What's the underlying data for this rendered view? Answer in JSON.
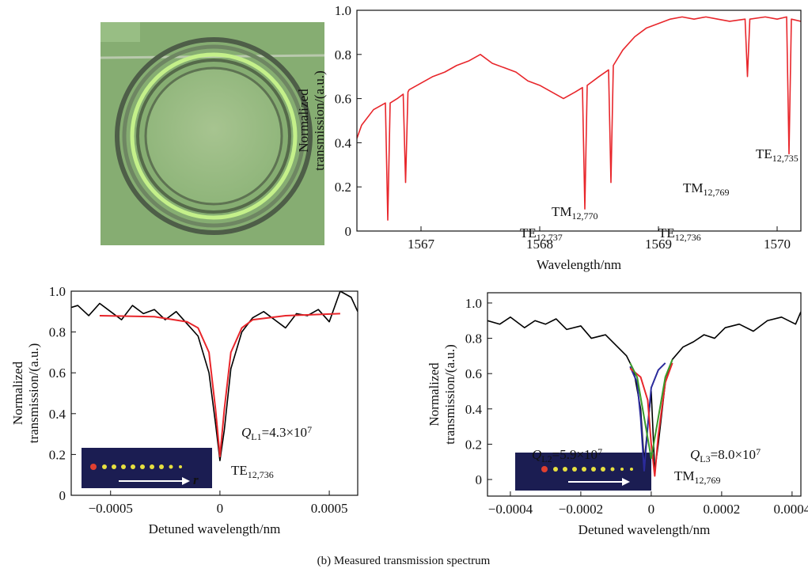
{
  "caption": "(b) Measured transmission spectrum",
  "chart_data": [
    {
      "type": "line",
      "xlabel": "Wavelength/nm",
      "ylabel": [
        "Normalized",
        "transmission/(a.u.)"
      ],
      "xlim": [
        1566.46,
        1570.2
      ],
      "ylim": [
        0,
        1
      ],
      "xticks": [
        1567,
        1568,
        1569,
        1570
      ],
      "yticks": [
        0,
        0.2,
        0.4,
        0.6,
        0.8,
        {
          "value": 1,
          "label": "1.0"
        }
      ],
      "series": [
        {
          "color": "#e8262b",
          "x": [
            1566.46,
            1566.5,
            1566.6,
            1566.7,
            1566.72,
            1566.74,
            1566.8,
            1566.85,
            1566.87,
            1566.89,
            1566.9,
            1567.0,
            1567.1,
            1567.2,
            1567.3,
            1567.4,
            1567.5,
            1567.6,
            1567.7,
            1567.8,
            1567.9,
            1568.0,
            1568.1,
            1568.2,
            1568.3,
            1568.36,
            1568.38,
            1568.4,
            1568.5,
            1568.58,
            1568.6,
            1568.62,
            1568.7,
            1568.8,
            1568.9,
            1569.0,
            1569.1,
            1569.2,
            1569.3,
            1569.4,
            1569.5,
            1569.6,
            1569.73,
            1569.75,
            1569.77,
            1569.9,
            1570.0,
            1570.08,
            1570.1,
            1570.12,
            1570.2
          ],
          "values": [
            0.42,
            0.48,
            0.55,
            0.58,
            0.05,
            0.58,
            0.6,
            0.62,
            0.22,
            0.63,
            0.64,
            0.67,
            0.7,
            0.72,
            0.75,
            0.77,
            0.8,
            0.76,
            0.74,
            0.72,
            0.68,
            0.66,
            0.63,
            0.6,
            0.63,
            0.65,
            0.1,
            0.66,
            0.7,
            0.73,
            0.22,
            0.75,
            0.82,
            0.88,
            0.92,
            0.94,
            0.96,
            0.97,
            0.96,
            0.97,
            0.96,
            0.95,
            0.96,
            0.7,
            0.96,
            0.97,
            0.96,
            0.97,
            0.35,
            0.96,
            0.95
          ]
        }
      ],
      "annotations": [
        {
          "parts": [
            {
              "text": "TM"
            },
            {
              "text": "12,770",
              "style": "sub"
            }
          ]
        },
        {
          "parts": [
            {
              "text": "TE"
            },
            {
              "text": "12,737",
              "style": "sub"
            }
          ]
        },
        {
          "parts": [
            {
              "text": "TM"
            },
            {
              "text": "12,769",
              "style": "sub"
            }
          ]
        },
        {
          "parts": [
            {
              "text": "TE"
            },
            {
              "text": "12,736",
              "style": "sub"
            }
          ]
        },
        {
          "parts": [
            {
              "text": "TE"
            },
            {
              "text": "12,735",
              "style": "sub"
            }
          ]
        }
      ]
    },
    {
      "type": "line",
      "xlabel": "Detuned wavelength/nm",
      "ylabel": [
        "Normalized",
        "transmission/(a.u.)"
      ],
      "xlim": [
        -0.00068,
        0.00063
      ],
      "ylim": [
        0,
        1
      ],
      "xticks": [
        {
          "value": -0.0005,
          "label": "−0.0005"
        },
        0,
        0.0005
      ],
      "yticks": [
        0,
        0.2,
        0.4,
        0.6,
        0.8,
        {
          "value": 1,
          "label": "1.0"
        }
      ],
      "series": [
        {
          "color": "#000000",
          "x": [
            -0.00068,
            -0.00065,
            -0.0006,
            -0.00055,
            -0.0005,
            -0.00045,
            -0.0004,
            -0.00035,
            -0.0003,
            -0.00025,
            -0.0002,
            -0.00015,
            -0.0001,
            -5e-05,
            -2e-05,
            0,
            2e-05,
            5e-05,
            0.0001,
            0.00015,
            0.0002,
            0.00025,
            0.0003,
            0.00035,
            0.0004,
            0.00045,
            0.0005,
            0.00055,
            0.0006,
            0.00063
          ],
          "values": [
            0.92,
            0.93,
            0.88,
            0.94,
            0.9,
            0.86,
            0.93,
            0.89,
            0.91,
            0.86,
            0.9,
            0.84,
            0.78,
            0.6,
            0.35,
            0.17,
            0.32,
            0.62,
            0.8,
            0.87,
            0.9,
            0.86,
            0.82,
            0.89,
            0.88,
            0.91,
            0.85,
            1,
            0.97,
            0.9
          ]
        },
        {
          "color": "#e8262b",
          "x": [
            -0.00055,
            -0.0003,
            -0.00015,
            -0.0001,
            -5e-05,
            -2e-05,
            0,
            2e-05,
            5e-05,
            0.0001,
            0.00015,
            0.0003,
            0.00055
          ],
          "values": [
            0.88,
            0.875,
            0.85,
            0.82,
            0.7,
            0.42,
            0.19,
            0.42,
            0.7,
            0.82,
            0.86,
            0.88,
            0.89
          ]
        }
      ],
      "inset_label": "r",
      "annotations": [
        {
          "color": "#e8262b",
          "parts": [
            {
              "text": "Q",
              "style": "italic"
            },
            {
              "text": "L1",
              "style": "sub"
            },
            {
              "text": "=4.3×10"
            },
            {
              "text": "7",
              "style": "sup"
            }
          ]
        },
        {
          "parts": [
            {
              "text": "TE"
            },
            {
              "text": "12,736",
              "style": "sub"
            }
          ]
        }
      ]
    },
    {
      "type": "line",
      "xlabel": "Detuned wavelength/nm",
      "ylabel": [
        "Normalized",
        "transmission/(a.u.)"
      ],
      "xlim": [
        -0.000465,
        0.000425
      ],
      "ylim": [
        -0.094,
        1.058
      ],
      "xticks": [
        {
          "value": -0.0004,
          "label": "−0.0004"
        },
        {
          "value": -0.0002,
          "label": "−0.0002"
        },
        0,
        0.0002,
        0.0004
      ],
      "yticks": [
        0,
        0.2,
        0.4,
        0.6,
        0.8,
        {
          "value": 1,
          "label": "1.0"
        }
      ],
      "series": [
        {
          "color": "#000000",
          "x": [
            -0.000465,
            -0.00043,
            -0.0004,
            -0.00036,
            -0.00033,
            -0.0003,
            -0.00027,
            -0.00024,
            -0.0002,
            -0.00017,
            -0.00013,
            -0.0001,
            -7e-05,
            -5e-05,
            -3e-05,
            -2e-05,
            -1e-05,
            0,
            1e-05,
            2e-05,
            4e-05,
            6e-05,
            9e-05,
            0.00012,
            0.00015,
            0.00018,
            0.00021,
            0.00025,
            0.00029,
            0.00033,
            0.00037,
            0.00041,
            0.000425
          ],
          "values": [
            0.9,
            0.88,
            0.92,
            0.86,
            0.9,
            0.88,
            0.91,
            0.85,
            0.87,
            0.8,
            0.82,
            0.76,
            0.7,
            0.62,
            0.4,
            0.1,
            0.3,
            0.5,
            0.05,
            0.2,
            0.55,
            0.68,
            0.75,
            0.78,
            0.82,
            0.8,
            0.86,
            0.88,
            0.84,
            0.9,
            0.92,
            0.88,
            0.95
          ]
        },
        {
          "color": "#2b2b9c",
          "x": [
            -6e-05,
            -4e-05,
            -3e-05,
            -2e-05,
            -1e-05,
            0,
            2e-05,
            4e-05
          ],
          "values": [
            0.64,
            0.55,
            0.35,
            0.05,
            0.3,
            0.52,
            0.62,
            0.66
          ]
        },
        {
          "color": "#e8262b",
          "x": [
            -6e-05,
            -3e-05,
            -1e-05,
            0,
            1e-05,
            2e-05,
            4e-05,
            6e-05
          ],
          "values": [
            0.63,
            0.58,
            0.45,
            0.2,
            0.02,
            0.25,
            0.55,
            0.66
          ]
        },
        {
          "color": "#3a9a2a",
          "x": [
            -6e-05,
            -4e-05,
            -2e-05,
            0,
            2e-05,
            4e-05,
            6e-05
          ],
          "values": [
            0.66,
            0.58,
            0.35,
            0.12,
            0.35,
            0.58,
            0.68
          ]
        }
      ],
      "annotations": [
        {
          "color": "#2b2b9c",
          "parts": [
            {
              "text": "Q",
              "style": "italic"
            },
            {
              "text": "L2",
              "style": "sub"
            },
            {
              "text": "=5.9×10"
            },
            {
              "text": "7",
              "style": "sup"
            }
          ]
        },
        {
          "color": "#3a9a2a",
          "parts": [
            {
              "text": "Q",
              "style": "italic"
            },
            {
              "text": "L3",
              "style": "sub"
            },
            {
              "text": "=8.0×10"
            },
            {
              "text": "7",
              "style": "sup"
            }
          ]
        },
        {
          "parts": [
            {
              "text": "TM"
            },
            {
              "text": "12,769",
              "style": "sub"
            }
          ]
        }
      ]
    }
  ]
}
